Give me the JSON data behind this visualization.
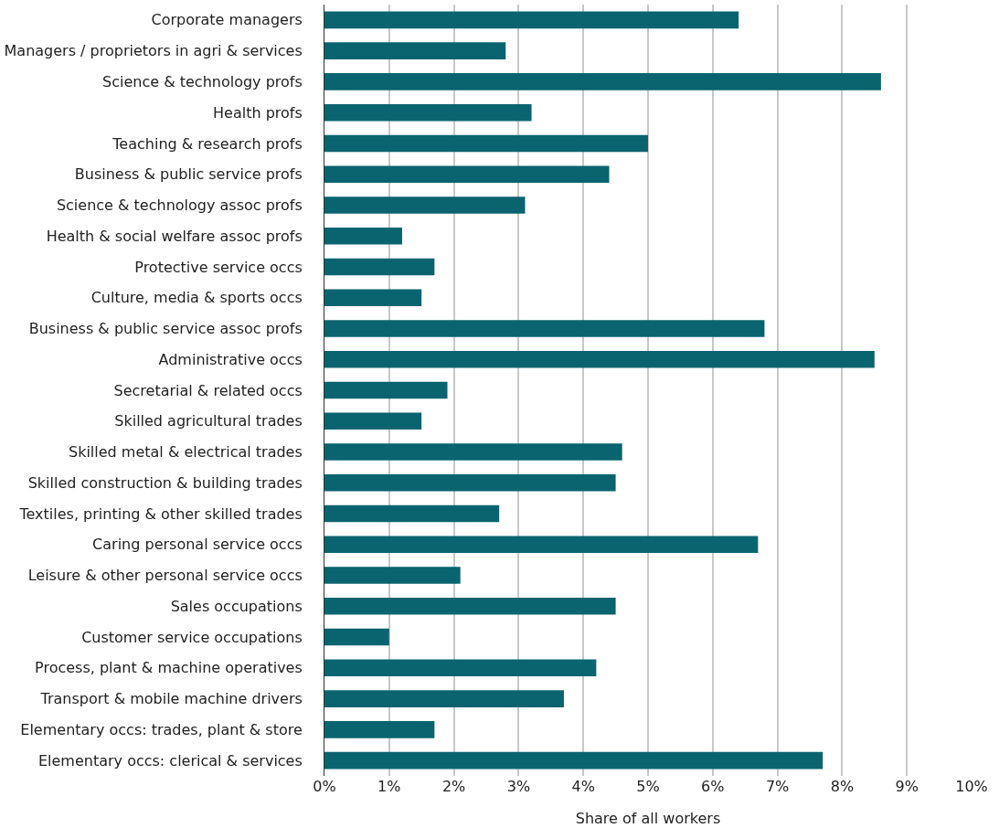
{
  "chart_data": {
    "type": "bar",
    "orientation": "horizontal",
    "xlabel": "Share of all workers",
    "categories": [
      "Corporate managers",
      "Managers / proprietors in agri & services",
      "Science & technology profs",
      "Health profs",
      "Teaching & research profs",
      "Business & public service profs",
      "Science & technology assoc profs",
      "Health & social welfare assoc profs",
      "Protective service occs",
      "Culture, media & sports occs",
      "Business & public service assoc profs",
      "Administrative occs",
      "Secretarial & related occs",
      "Skilled agricultural trades",
      "Skilled metal & electrical trades",
      "Skilled construction & building trades",
      "Textiles, printing & other skilled trades",
      "Caring personal service occs",
      "Leisure & other personal service occs",
      "Sales occupations",
      "Customer service occupations",
      "Process, plant & machine operatives",
      "Transport & mobile machine drivers",
      "Elementary occs: trades, plant & store",
      "Elementary occs: clerical & services"
    ],
    "values": [
      6.4,
      2.8,
      8.6,
      3.2,
      5.0,
      4.4,
      3.1,
      1.2,
      1.7,
      1.5,
      6.8,
      8.5,
      1.9,
      1.5,
      4.6,
      4.5,
      2.7,
      6.7,
      2.1,
      4.5,
      1.0,
      4.2,
      3.7,
      1.7,
      7.7
    ],
    "color": "#0a6470",
    "xlim": [
      0,
      10
    ],
    "xticks": [
      {
        "value": 0,
        "label": "0%"
      },
      {
        "value": 1,
        "label": "1%"
      },
      {
        "value": 2,
        "label": "2%"
      },
      {
        "value": 3,
        "label": "3%"
      },
      {
        "value": 4,
        "label": "4%"
      },
      {
        "value": 5,
        "label": "5%"
      },
      {
        "value": 6,
        "label": "6%"
      },
      {
        "value": 7,
        "label": "7%"
      },
      {
        "value": 8,
        "label": "8%"
      },
      {
        "value": 9,
        "label": "9%"
      },
      {
        "value": 10,
        "label": "10%"
      }
    ],
    "grid": "x",
    "legend": false
  }
}
